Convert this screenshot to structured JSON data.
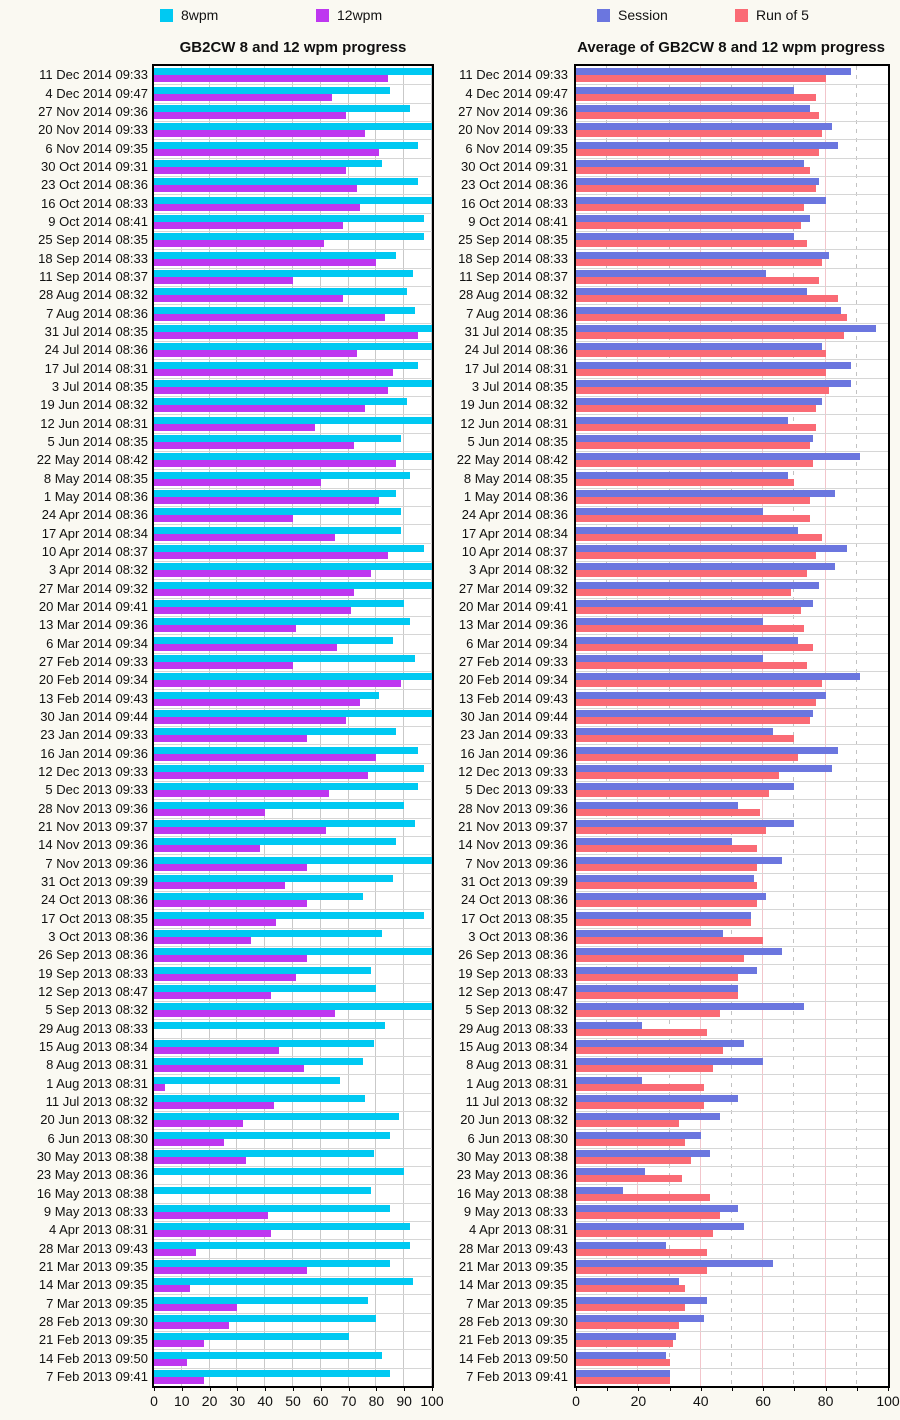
{
  "page": {
    "background": "#FAF9F2"
  },
  "legend_left": [
    {
      "label": "8wpm",
      "color": "#00C9F2"
    },
    {
      "label": "12wpm",
      "color": "#BE37F0"
    }
  ],
  "legend_right": [
    {
      "label": "Session",
      "color": "#6B76DF"
    },
    {
      "label": "Run of 5",
      "color": "#FA6B75"
    }
  ],
  "chart_data": [
    {
      "type": "bar",
      "orientation": "horizontal",
      "title": "GB2CW 8 and 12 wpm progress",
      "xlim": [
        0,
        100
      ],
      "xticks": [
        0,
        10,
        20,
        30,
        40,
        50,
        60,
        70,
        80,
        90,
        100
      ],
      "grid": true,
      "legend_position": "top",
      "categories": [
        "11 Dec 2014 09:33",
        "4 Dec 2014 09:47",
        "27 Nov 2014 09:36",
        "20 Nov 2014 09:33",
        "6 Nov 2014 09:35",
        "30 Oct 2014 09:31",
        "23 Oct 2014 08:36",
        "16 Oct 2014 08:33",
        "9 Oct 2014 08:41",
        "25 Sep 2014 08:35",
        "18 Sep 2014 08:33",
        "11 Sep 2014 08:37",
        "28 Aug 2014 08:32",
        "7 Aug 2014 08:36",
        "31 Jul 2014 08:35",
        "24 Jul 2014 08:36",
        "17 Jul 2014 08:31",
        "3 Jul 2014 08:35",
        "19 Jun 2014 08:32",
        "12 Jun 2014 08:31",
        "5 Jun 2014 08:35",
        "22 May 2014 08:42",
        "8 May 2014 08:35",
        "1 May 2014 08:36",
        "24 Apr 2014 08:36",
        "17 Apr 2014 08:34",
        "10 Apr 2014 08:37",
        "3 Apr 2014 08:32",
        "27 Mar 2014 09:32",
        "20 Mar 2014 09:41",
        "13 Mar 2014 09:36",
        "6 Mar 2014 09:34",
        "27 Feb 2014 09:33",
        "20 Feb 2014 09:34",
        "13 Feb 2014 09:43",
        "30 Jan 2014 09:44",
        "23 Jan 2014 09:33",
        "16 Jan 2014 09:36",
        "12 Dec 2013 09:33",
        "5 Dec 2013 09:33",
        "28 Nov 2013 09:36",
        "21 Nov 2013 09:37",
        "14 Nov 2013 09:36",
        "7 Nov 2013 09:36",
        "31 Oct 2013 09:39",
        "24 Oct 2013 08:36",
        "17 Oct 2013 08:35",
        "3 Oct 2013 08:36",
        "26 Sep 2013 08:36",
        "19 Sep 2013 08:33",
        "12 Sep 2013 08:47",
        "5 Sep 2013 08:32",
        "29 Aug 2013 08:33",
        "15 Aug 2013 08:34",
        "8 Aug 2013 08:31",
        "1 Aug 2013 08:31",
        "11 Jul 2013 08:32",
        "20 Jun 2013 08:32",
        "6 Jun 2013 08:30",
        "30 May 2013 08:38",
        "23 May 2013 08:36",
        "16 May 2013 08:38",
        "9 May 2013 08:33",
        "4 Apr 2013 08:31",
        "28 Mar 2013 09:43",
        "21 Mar 2013 09:35",
        "14 Mar 2013 09:35",
        "7 Mar 2013 09:35",
        "28 Feb 2013 09:30",
        "21 Feb 2013 09:35",
        "14 Feb 2013 09:50",
        "7 Feb 2013 09:41"
      ],
      "series": [
        {
          "name": "8wpm",
          "color": "#00C9F2",
          "values": [
            100,
            85,
            92,
            100,
            95,
            82,
            95,
            100,
            97,
            97,
            87,
            93,
            91,
            94,
            100,
            100,
            95,
            100,
            91,
            100,
            89,
            100,
            92,
            87,
            89,
            89,
            97,
            100,
            100,
            90,
            92,
            86,
            94,
            100,
            81,
            100,
            87,
            95,
            97,
            95,
            90,
            94,
            87,
            100,
            86,
            75,
            97,
            82,
            100,
            78,
            80,
            100,
            83,
            79,
            75,
            67,
            76,
            88,
            85,
            79,
            90,
            78,
            85,
            92,
            92,
            85,
            93,
            77,
            80,
            70,
            82,
            85
          ]
        },
        {
          "name": "12wpm",
          "color": "#BE37F0",
          "values": [
            84,
            64,
            69,
            76,
            81,
            69,
            73,
            74,
            68,
            61,
            80,
            50,
            68,
            83,
            95,
            73,
            86,
            84,
            76,
            58,
            72,
            87,
            60,
            81,
            50,
            65,
            84,
            78,
            72,
            71,
            51,
            66,
            50,
            89,
            74,
            69,
            55,
            80,
            77,
            63,
            40,
            62,
            38,
            55,
            47,
            55,
            44,
            35,
            55,
            51,
            42,
            65,
            0,
            45,
            54,
            4,
            43,
            32,
            25,
            33,
            0,
            0,
            41,
            42,
            15,
            55,
            13,
            30,
            27,
            18,
            12,
            18
          ]
        }
      ]
    },
    {
      "type": "bar",
      "orientation": "horizontal",
      "title": "Average of GB2CW 8 and 12 wpm progress",
      "xlim": [
        0,
        100
      ],
      "xticks": [
        0,
        20,
        40,
        60,
        80,
        100
      ],
      "grid": true,
      "legend_position": "top",
      "categories": [
        "11 Dec 2014 09:33",
        "4 Dec 2014 09:47",
        "27 Nov 2014 09:36",
        "20 Nov 2014 09:33",
        "6 Nov 2014 09:35",
        "30 Oct 2014 09:31",
        "23 Oct 2014 08:36",
        "16 Oct 2014 08:33",
        "9 Oct 2014 08:41",
        "25 Sep 2014 08:35",
        "18 Sep 2014 08:33",
        "11 Sep 2014 08:37",
        "28 Aug 2014 08:32",
        "7 Aug 2014 08:36",
        "31 Jul 2014 08:35",
        "24 Jul 2014 08:36",
        "17 Jul 2014 08:31",
        "3 Jul 2014 08:35",
        "19 Jun 2014 08:32",
        "12 Jun 2014 08:31",
        "5 Jun 2014 08:35",
        "22 May 2014 08:42",
        "8 May 2014 08:35",
        "1 May 2014 08:36",
        "24 Apr 2014 08:36",
        "17 Apr 2014 08:34",
        "10 Apr 2014 08:37",
        "3 Apr 2014 08:32",
        "27 Mar 2014 09:32",
        "20 Mar 2014 09:41",
        "13 Mar 2014 09:36",
        "6 Mar 2014 09:34",
        "27 Feb 2014 09:33",
        "20 Feb 2014 09:34",
        "13 Feb 2014 09:43",
        "30 Jan 2014 09:44",
        "23 Jan 2014 09:33",
        "16 Jan 2014 09:36",
        "12 Dec 2013 09:33",
        "5 Dec 2013 09:33",
        "28 Nov 2013 09:36",
        "21 Nov 2013 09:37",
        "14 Nov 2013 09:36",
        "7 Nov 2013 09:36",
        "31 Oct 2013 09:39",
        "24 Oct 2013 08:36",
        "17 Oct 2013 08:35",
        "3 Oct 2013 08:36",
        "26 Sep 2013 08:36",
        "19 Sep 2013 08:33",
        "12 Sep 2013 08:47",
        "5 Sep 2013 08:32",
        "29 Aug 2013 08:33",
        "15 Aug 2013 08:34",
        "8 Aug 2013 08:31",
        "1 Aug 2013 08:31",
        "11 Jul 2013 08:32",
        "20 Jun 2013 08:32",
        "6 Jun 2013 08:30",
        "30 May 2013 08:38",
        "23 May 2013 08:36",
        "16 May 2013 08:38",
        "9 May 2013 08:33",
        "4 Apr 2013 08:31",
        "28 Mar 2013 09:43",
        "21 Mar 2013 09:35",
        "14 Mar 2013 09:35",
        "7 Mar 2013 09:35",
        "28 Feb 2013 09:30",
        "21 Feb 2013 09:35",
        "14 Feb 2013 09:50",
        "7 Feb 2013 09:41"
      ],
      "series": [
        {
          "name": "Session",
          "color": "#6B76DF",
          "values": [
            88,
            70,
            75,
            82,
            84,
            73,
            78,
            80,
            75,
            70,
            81,
            61,
            74,
            85,
            96,
            79,
            88,
            88,
            79,
            68,
            76,
            91,
            68,
            83,
            60,
            71,
            87,
            83,
            78,
            76,
            60,
            71,
            60,
            91,
            80,
            76,
            63,
            84,
            82,
            70,
            52,
            70,
            50,
            66,
            57,
            61,
            56,
            47,
            66,
            58,
            52,
            73,
            21,
            54,
            60,
            21,
            52,
            46,
            40,
            43,
            22,
            15,
            52,
            54,
            29,
            63,
            33,
            42,
            41,
            32,
            29,
            30
          ]
        },
        {
          "name": "Run of 5",
          "color": "#FA6B75",
          "values": [
            80,
            77,
            78,
            79,
            78,
            75,
            77,
            73,
            72,
            74,
            79,
            78,
            84,
            87,
            86,
            80,
            80,
            81,
            77,
            77,
            75,
            76,
            70,
            75,
            75,
            79,
            77,
            74,
            69,
            72,
            73,
            76,
            74,
            79,
            77,
            75,
            70,
            71,
            65,
            62,
            59,
            61,
            58,
            58,
            58,
            58,
            56,
            60,
            54,
            52,
            52,
            46,
            42,
            47,
            44,
            41,
            41,
            33,
            35,
            37,
            34,
            43,
            46,
            44,
            42,
            42,
            35,
            35,
            33,
            31,
            30,
            30
          ]
        }
      ]
    }
  ]
}
